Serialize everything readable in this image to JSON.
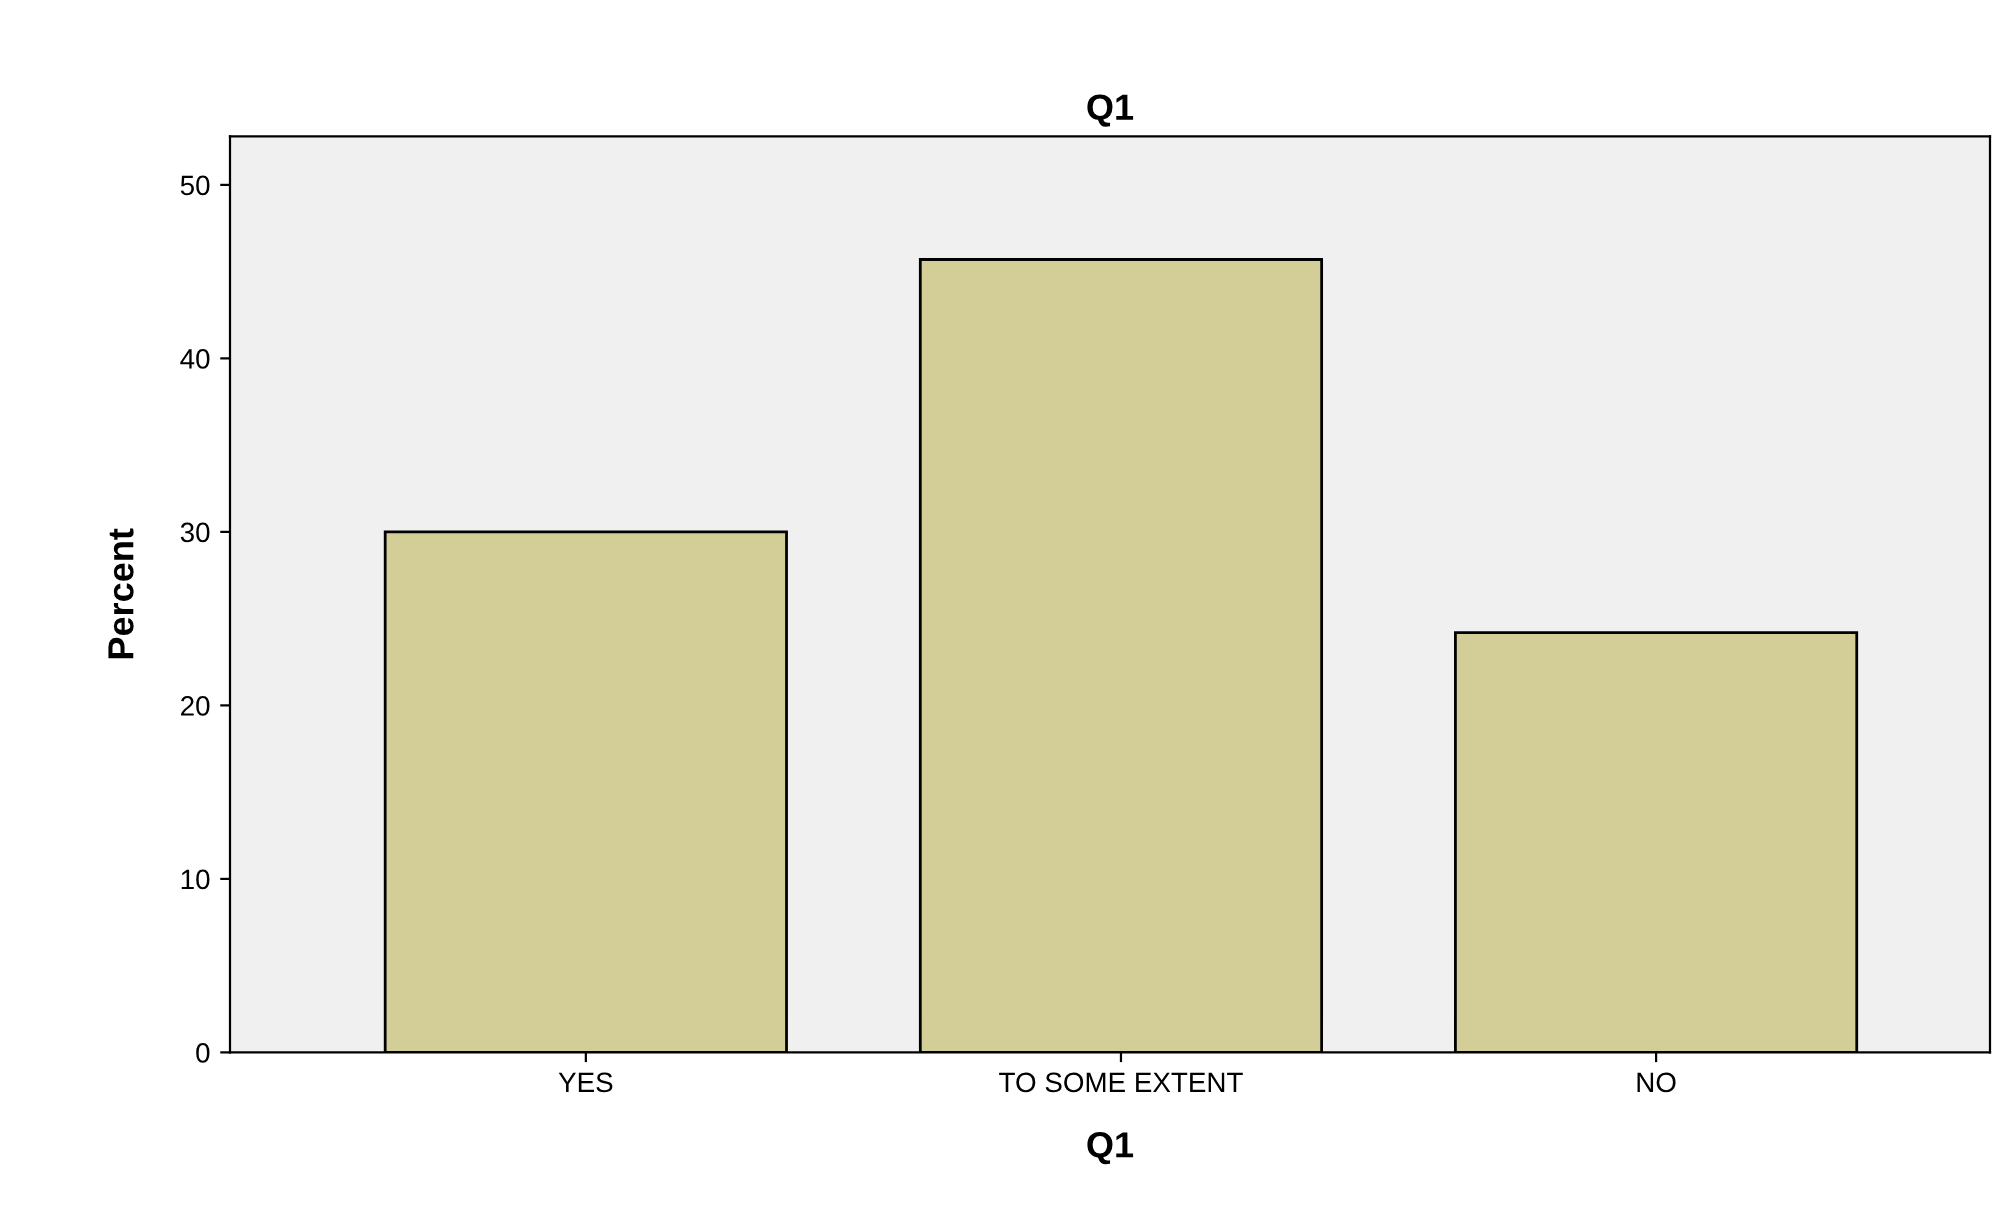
{
  "chart_data": {
    "type": "bar",
    "title": "Q1",
    "xlabel": "Q1",
    "ylabel": "Percent",
    "categories": [
      "YES",
      "TO SOME EXTENT",
      "NO"
    ],
    "values": [
      30.0,
      45.7,
      24.2
    ],
    "color": "#d3ce97",
    "ylim": [
      0,
      52.8
    ],
    "yticks": [
      0,
      10,
      20,
      30,
      40,
      50
    ],
    "grid": false,
    "legend": false
  }
}
